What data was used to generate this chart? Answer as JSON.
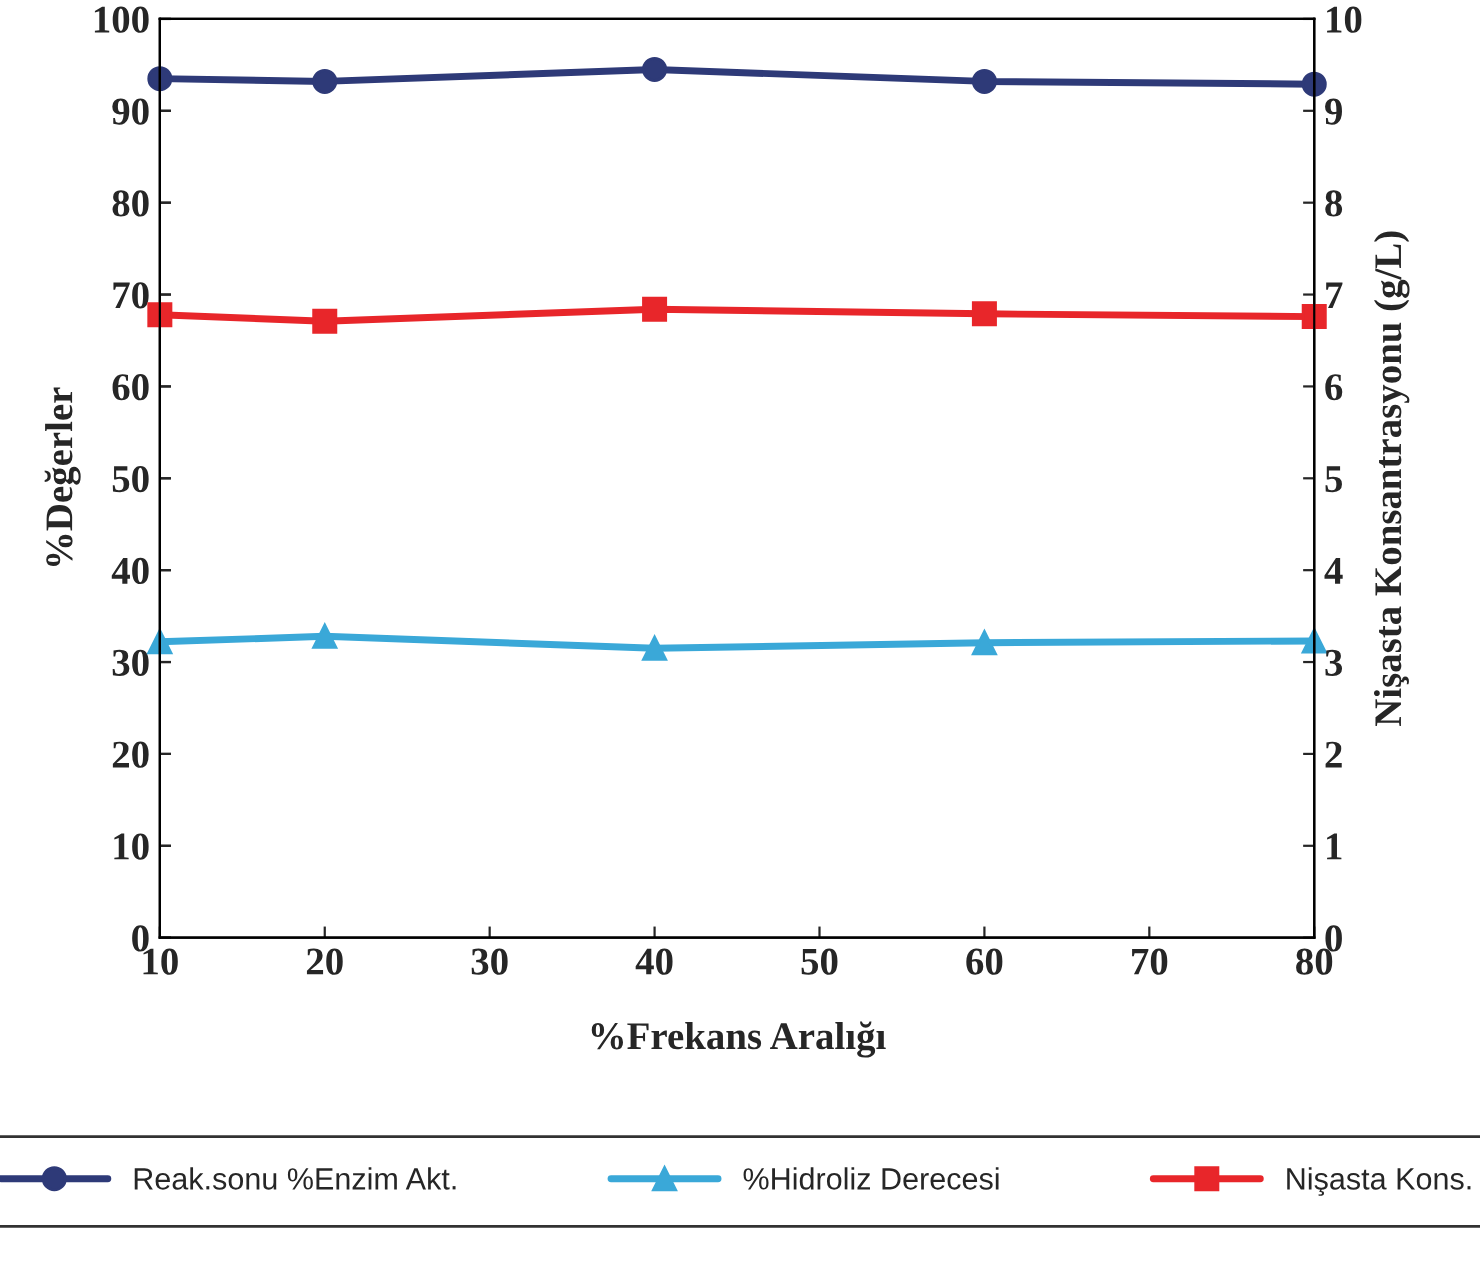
{
  "chart_data": {
    "type": "line",
    "xlabel": "%Frekans Aralığı",
    "ylabel": "%Değerler",
    "y2label": "Nişasta Konsantrasyonu (g/L)",
    "x": [
      10,
      20,
      40,
      60,
      80
    ],
    "series": [
      {
        "name": "Reak.sonu %Enzim Akt.",
        "color": "#2e3a78",
        "marker": "circle",
        "values": [
          93.5,
          93.2,
          94.5,
          93.2,
          92.9
        ]
      },
      {
        "name": "%Hidroliz Derecesi",
        "color": "#3aa8d8",
        "marker": "triangle",
        "values": [
          32.2,
          32.8,
          31.5,
          32.1,
          32.3
        ]
      },
      {
        "name": "Nişasta Kons.",
        "color": "#e8262a",
        "marker": "square",
        "axis": "y2",
        "values": [
          6.78,
          6.71,
          6.84,
          6.79,
          6.76
        ]
      }
    ],
    "xlim": [
      10,
      80
    ],
    "xticks": [
      10,
      20,
      30,
      40,
      50,
      60,
      70,
      80
    ],
    "ylim": [
      0,
      100
    ],
    "yticks": [
      0,
      10,
      20,
      30,
      40,
      50,
      60,
      70,
      80,
      90,
      100
    ],
    "y2lim": [
      0,
      10
    ],
    "y2ticks": [
      0,
      1,
      2,
      3,
      4,
      5,
      6,
      7,
      8,
      9,
      10
    ],
    "legend": "bottom",
    "grid": false,
    "line_style": "solid"
  }
}
